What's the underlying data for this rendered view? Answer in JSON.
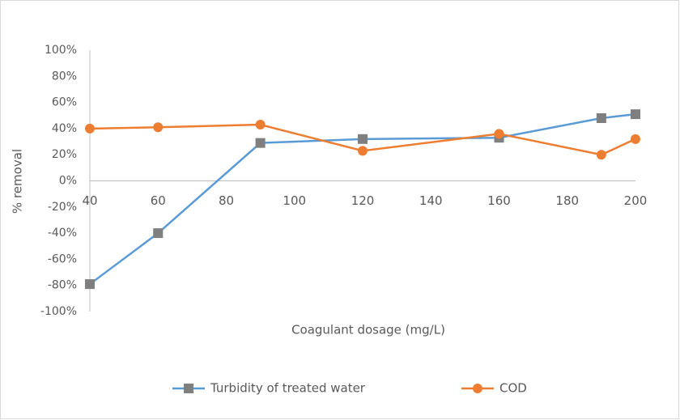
{
  "chart_data": {
    "type": "line",
    "xlabel": "Coagulant dosage (mg/L)",
    "ylabel": "% removal",
    "x": [
      40,
      60,
      90,
      120,
      160,
      190,
      200
    ],
    "series": [
      {
        "name": "Turbidity of treated water",
        "color": "#5b9bd5",
        "marker": "square",
        "marker_color": "#7f7f7f",
        "values": [
          -79,
          -40,
          29,
          32,
          33,
          48,
          51
        ]
      },
      {
        "name": "COD",
        "color": "#ed7d31",
        "marker": "circle",
        "marker_color": "#ed7d31",
        "values": [
          40,
          41,
          43,
          23,
          36,
          20,
          32
        ]
      }
    ],
    "xlim": [
      40,
      200
    ],
    "xticks": [
      40,
      60,
      80,
      100,
      120,
      140,
      160,
      180,
      200
    ],
    "ylim": [
      -100,
      100
    ],
    "yticks": [
      {
        "value": -100,
        "label": "-100%"
      },
      {
        "value": -80,
        "label": "-80%"
      },
      {
        "value": -60,
        "label": "-60%"
      },
      {
        "value": -40,
        "label": "-40%"
      },
      {
        "value": -20,
        "label": "-20%"
      },
      {
        "value": 0,
        "label": "0%"
      },
      {
        "value": 20,
        "label": "20%"
      },
      {
        "value": 40,
        "label": "40%"
      },
      {
        "value": 60,
        "label": "60%"
      },
      {
        "value": 80,
        "label": "80%"
      },
      {
        "value": 100,
        "label": "100%"
      }
    ],
    "grid": false,
    "legend": "bottom"
  }
}
